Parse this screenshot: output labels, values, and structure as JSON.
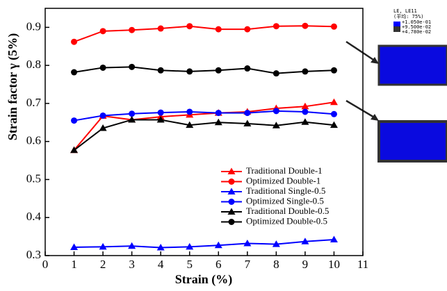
{
  "chart_data": {
    "type": "line",
    "x_label": "Strain (%)",
    "y_label": "Strain factor γ (5%)",
    "x": [
      1,
      2,
      3,
      4,
      5,
      6,
      7,
      8,
      9,
      10
    ],
    "xlim": [
      0,
      11
    ],
    "xticks": [
      0,
      1,
      2,
      3,
      4,
      5,
      6,
      7,
      8,
      9,
      10,
      11
    ],
    "ylim": [
      0.3,
      0.95
    ],
    "yticks": [
      0.3,
      0.4,
      0.5,
      0.6,
      0.7,
      0.8,
      0.9
    ],
    "grid": false,
    "series": [
      {
        "name": "Traditional Double-1",
        "color": "#ff0000",
        "marker": "triangle",
        "values": [
          0.577,
          0.667,
          0.657,
          0.665,
          0.67,
          0.675,
          0.678,
          0.687,
          0.692,
          0.703
        ]
      },
      {
        "name": "Optimized Double-1",
        "color": "#ff0000",
        "marker": "circle",
        "values": [
          0.862,
          0.89,
          0.893,
          0.897,
          0.903,
          0.895,
          0.895,
          0.903,
          0.904,
          0.902
        ]
      },
      {
        "name": "Traditional Single-0.5",
        "color": "#0000ff",
        "marker": "triangle",
        "values": [
          0.322,
          0.323,
          0.325,
          0.321,
          0.323,
          0.327,
          0.332,
          0.33,
          0.337,
          0.342
        ]
      },
      {
        "name": "Optimized Single-0.5",
        "color": "#0000ff",
        "marker": "circle",
        "values": [
          0.655,
          0.668,
          0.673,
          0.676,
          0.678,
          0.675,
          0.675,
          0.68,
          0.678,
          0.672
        ]
      },
      {
        "name": "Traditional Double-0.5",
        "color": "#000000",
        "marker": "triangle",
        "values": [
          0.577,
          0.635,
          0.657,
          0.657,
          0.643,
          0.65,
          0.647,
          0.642,
          0.651,
          0.643
        ]
      },
      {
        "name": "Optimized Double-0.5",
        "color": "#000000",
        "marker": "circle",
        "values": [
          0.782,
          0.794,
          0.796,
          0.787,
          0.784,
          0.787,
          0.792,
          0.779,
          0.784,
          0.787
        ]
      }
    ]
  },
  "inset": {
    "title": "LE, LE11",
    "subtitle": "(平均: 75%)",
    "levels": [
      "+1.050e-01",
      "+9.500e-02",
      "+4.780e-02"
    ]
  }
}
